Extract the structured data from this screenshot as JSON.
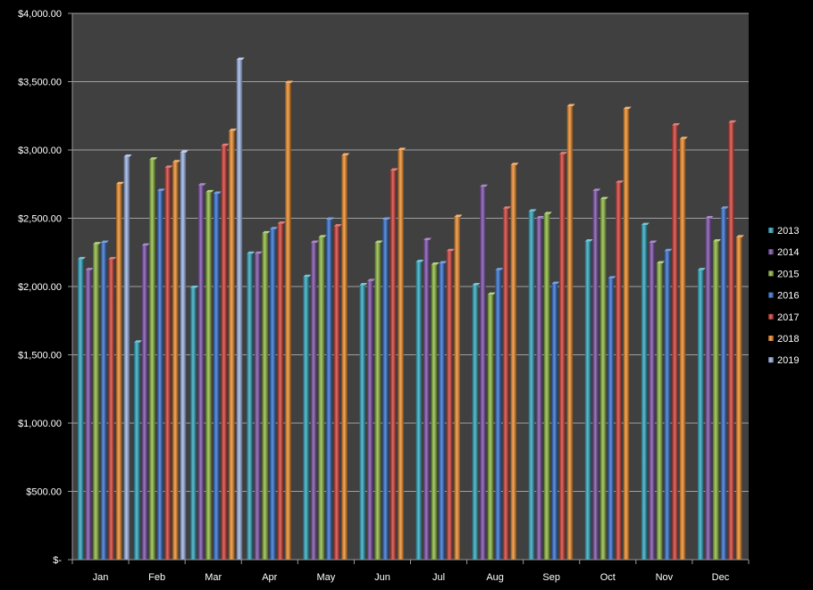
{
  "chart_data": {
    "type": "bar",
    "categories": [
      "Jan",
      "Feb",
      "Mar",
      "Apr",
      "May",
      "Jun",
      "Jul",
      "Aug",
      "Sep",
      "Oct",
      "Nov",
      "Dec"
    ],
    "ylim": [
      0,
      4000
    ],
    "yticks": [
      0,
      500,
      1000,
      1500,
      2000,
      2500,
      3000,
      3500,
      4000
    ],
    "ytick_labels": [
      "$-",
      "$500.00",
      "$1,000.00",
      "$1,500.00",
      "$2,000.00",
      "$2,500.00",
      "$3,000.00",
      "$3,500.00",
      "$4,000.00"
    ],
    "grid": true,
    "legend_position": "right",
    "plot_background": "#404040",
    "series": [
      {
        "name": "2013",
        "color": "#2aa7c0",
        "values": [
          2200,
          1590,
          1990,
          2240,
          2070,
          2010,
          2180,
          2010,
          2550,
          2330,
          2450,
          2120
        ]
      },
      {
        "name": "2014",
        "color": "#7a4ca8",
        "values": [
          2120,
          2300,
          2740,
          2240,
          2320,
          2040,
          2340,
          2730,
          2500,
          2700,
          2320,
          2500
        ]
      },
      {
        "name": "2015",
        "color": "#8cba3b",
        "values": [
          2310,
          2930,
          2690,
          2390,
          2360,
          2320,
          2160,
          1940,
          2530,
          2640,
          2170,
          2330
        ]
      },
      {
        "name": "2016",
        "color": "#2f6fd1",
        "values": [
          2320,
          2700,
          2680,
          2420,
          2490,
          2490,
          2170,
          2120,
          2020,
          2060,
          2260,
          2570
        ]
      },
      {
        "name": "2017",
        "color": "#d43a32",
        "values": [
          2200,
          2870,
          3030,
          2460,
          2440,
          2850,
          2260,
          2570,
          2970,
          2760,
          3180,
          3200
        ]
      },
      {
        "name": "2018",
        "color": "#f08a23",
        "values": [
          2750,
          2910,
          3140,
          3490,
          2960,
          3000,
          2510,
          2890,
          3320,
          3300,
          3080,
          2360
        ]
      },
      {
        "name": "2019",
        "color": "#9bb3e6",
        "values": [
          2950,
          2980,
          3660,
          null,
          null,
          null,
          null,
          null,
          null,
          null,
          null,
          null
        ]
      }
    ]
  }
}
